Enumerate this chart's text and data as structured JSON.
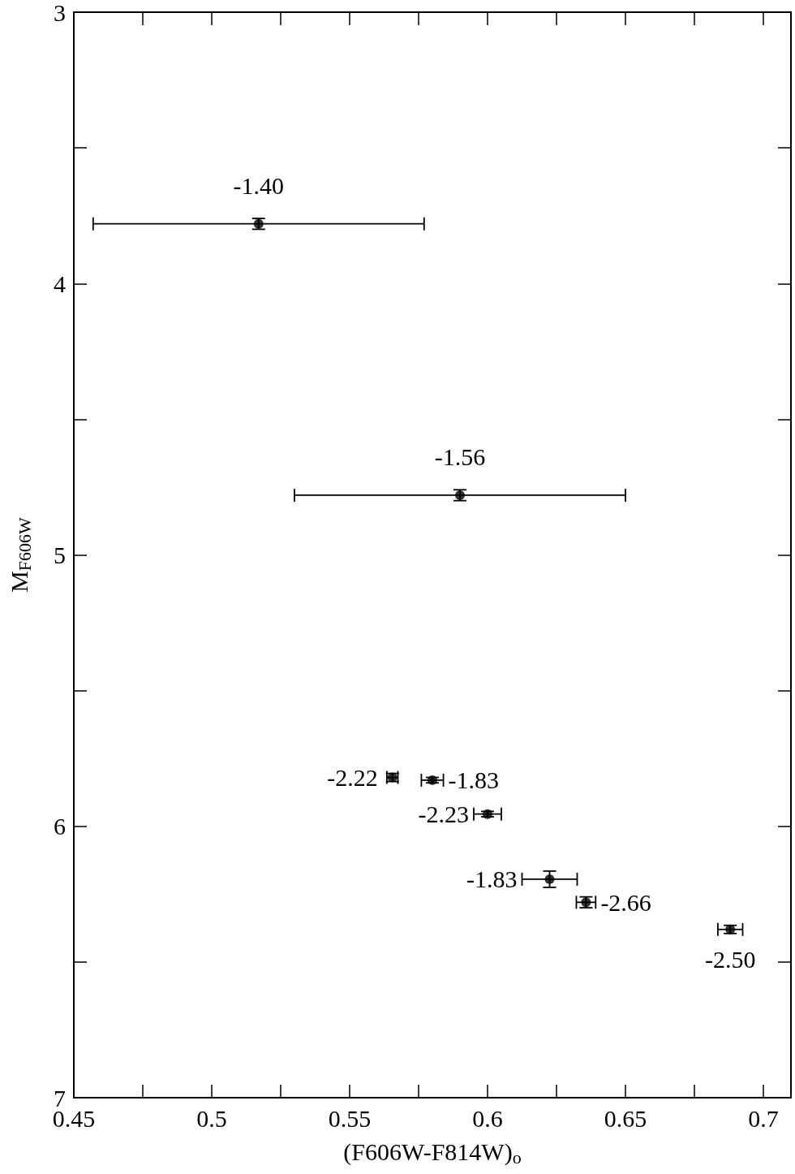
{
  "chart_data": {
    "type": "scatter",
    "xlabel": "(F606W-F814W)$_{o}$",
    "ylabel": "M$_{F606W}$",
    "x": [
      0.517,
      0.59,
      0.5655,
      0.58,
      0.6,
      0.6225,
      0.6357,
      0.688
    ],
    "values": [
      3.78,
      4.78,
      5.82,
      5.83,
      5.955,
      6.195,
      6.28,
      6.38
    ],
    "xerrors": [
      0.06,
      0.06,
      0.002,
      0.004,
      0.005,
      0.01,
      0.0035,
      0.0045
    ],
    "errors": [
      0.02,
      0.02,
      0.015,
      0.01,
      0.01,
      0.03,
      0.02,
      0.015
    ],
    "color": "#000000",
    "marker": "circle",
    "xlim": [
      0.45,
      0.71
    ],
    "xticks": [
      0.45,
      {
        "value": 0.475,
        "label": null
      },
      0.5,
      {
        "value": 0.525,
        "label": null
      },
      0.55,
      {
        "value": 0.575,
        "label": null
      },
      0.6,
      {
        "value": 0.625,
        "label": null
      },
      0.65,
      {
        "value": 0.675,
        "label": null
      },
      0.7
    ],
    "ylim": [
      7,
      3
    ],
    "yticks": [
      3,
      {
        "value": 3.5,
        "label": null
      },
      4,
      {
        "value": 4.5,
        "label": null
      },
      5,
      {
        "value": 5.5,
        "label": null
      },
      6,
      {
        "value": 6.5,
        "label": null
      },
      7
    ],
    "annotations": [
      {
        "text": "-1.40",
        "x": 0.517,
        "y": 3.78
      },
      {
        "text": "-1.56",
        "x": 0.59,
        "y": 4.78
      },
      {
        "text": "-2.22",
        "x": 0.5655,
        "y": 5.82
      },
      {
        "text": "-1.83",
        "x": 0.58,
        "y": 5.83
      },
      {
        "text": "-2.23",
        "x": 0.6,
        "y": 5.955
      },
      {
        "text": "-1.83",
        "x": 0.6225,
        "y": 6.195
      },
      {
        "text": "-2.66",
        "x": 0.6357,
        "y": 6.28
      },
      {
        "text": "-2.50",
        "x": 0.688,
        "y": 6.38
      }
    ]
  }
}
